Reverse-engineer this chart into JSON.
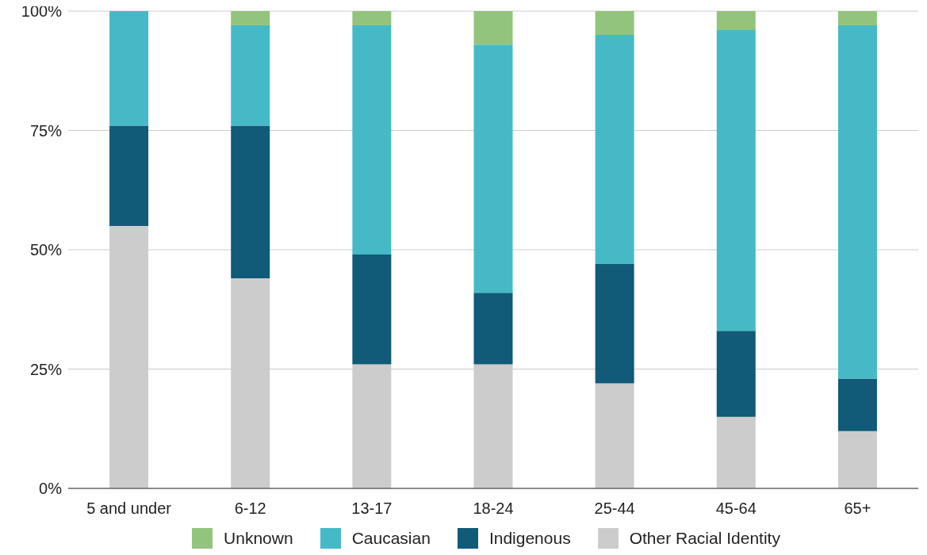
{
  "chart_data": {
    "type": "bar",
    "stacked": true,
    "categories": [
      "5 and under",
      "6-12",
      "13-17",
      "18-24",
      "25-44",
      "45-64",
      "65+"
    ],
    "series": [
      {
        "name": "Other Racial Identity",
        "color": "#cccccc",
        "values": [
          55,
          44,
          26,
          26,
          22,
          15,
          12
        ]
      },
      {
        "name": "Indigenous",
        "color": "#115a78",
        "values": [
          21,
          32,
          23,
          15,
          25,
          18,
          11
        ]
      },
      {
        "name": "Caucasian",
        "color": "#45bac6",
        "values": [
          24,
          21,
          48,
          52,
          48,
          63,
          74
        ]
      },
      {
        "name": "Unknown",
        "color": "#93c47d",
        "values": [
          0,
          3,
          3,
          7,
          5,
          4,
          3
        ]
      }
    ],
    "ylim": [
      0,
      100
    ],
    "yticks": [
      {
        "value": 0,
        "label": "0%"
      },
      {
        "value": 25,
        "label": "25%"
      },
      {
        "value": 50,
        "label": "50%"
      },
      {
        "value": 75,
        "label": "75%"
      },
      {
        "value": 100,
        "label": "100%"
      }
    ],
    "grid": "y",
    "legend": "bottom"
  }
}
